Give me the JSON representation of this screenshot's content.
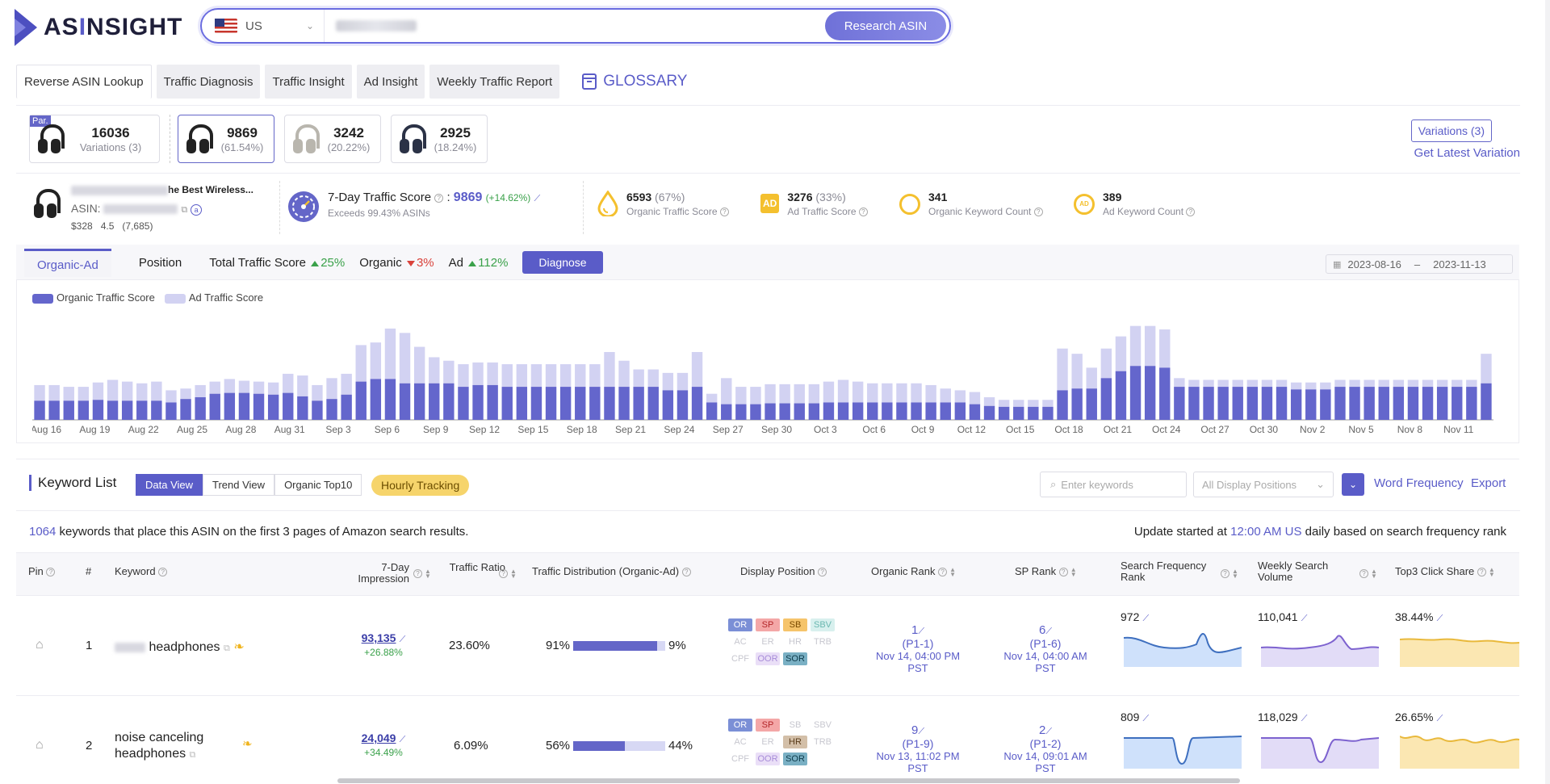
{
  "app": {
    "logo": "ASINSIGHT",
    "accent": "#5a5cc8"
  },
  "search": {
    "country": "US",
    "button": "Research ASIN"
  },
  "tabs": [
    "Reverse ASIN Lookup",
    "Traffic Diagnosis",
    "Traffic Insight",
    "Ad Insight",
    "Weekly Traffic Report"
  ],
  "glossary": "GLOSSARY",
  "variations": {
    "parent_tag": "Par.",
    "cards": [
      {
        "value": "16036",
        "sub": "Variations (3)",
        "color": "#222"
      },
      {
        "value": "9869",
        "sub": "(61.54%)",
        "color": "#222"
      },
      {
        "value": "3242",
        "sub": "(20.22%)",
        "color": "#b9b6ae"
      },
      {
        "value": "2925",
        "sub": "(18.24%)",
        "color": "#2b3246"
      }
    ],
    "button": "Variations (3)",
    "latest_link": "Get Latest Variation"
  },
  "product": {
    "title_tail": "he Best Wireless...",
    "asin_label": "ASIN:",
    "price": "$328",
    "rating": "4.5",
    "reviews": "(7,685)"
  },
  "metrics": {
    "seven_day_label": "7-Day Traffic Score",
    "seven_day_value": "9869",
    "seven_day_change": "(+14.62%)",
    "exceeds": "Exceeds 99.43% ASINs",
    "organic_value": "6593",
    "organic_pct": "(67%)",
    "organic_label": "Organic Traffic Score",
    "ad_value": "3276",
    "ad_pct": "(33%)",
    "ad_label": "Ad Traffic Score",
    "ad_badge": "AD",
    "org_kw_value": "341",
    "org_kw_label": "Organic Keyword Count",
    "ad_kw_value": "389",
    "ad_kw_label": "Ad Keyword Count"
  },
  "chart_tabs": {
    "organic_ad": "Organic-Ad",
    "position": "Position",
    "total_label": "Total Traffic Score",
    "total_change": "25%",
    "organic_label": "Organic",
    "organic_change": "3%",
    "ad_label": "Ad",
    "ad_change": "112%",
    "diagnose": "Diagnose",
    "date_from": "2023-08-16",
    "date_sep": "–",
    "date_to": "2023-11-13"
  },
  "chart_data": {
    "type": "bar",
    "stacked": true,
    "legend": [
      "Organic Traffic Score",
      "Ad Traffic Score"
    ],
    "colors": {
      "organic": "#6466cc",
      "ad": "#d2d2f2"
    },
    "x_labels": [
      "Aug 16",
      "Aug 19",
      "Aug 22",
      "Aug 25",
      "Aug 28",
      "Aug 31",
      "Sep 3",
      "Sep 6",
      "Sep 9",
      "Sep 12",
      "Sep 15",
      "Sep 18",
      "Sep 21",
      "Sep 24",
      "Sep 27",
      "Sep 30",
      "Oct 3",
      "Oct 6",
      "Oct 9",
      "Oct 12",
      "Oct 15",
      "Oct 18",
      "Oct 21",
      "Oct 24",
      "Oct 27",
      "Oct 30",
      "Nov 2",
      "Nov 5",
      "Nov 8",
      "Nov 11"
    ],
    "organic": [
      22,
      22,
      22,
      22,
      23,
      22,
      22,
      22,
      22,
      20,
      24,
      26,
      30,
      31,
      31,
      30,
      29,
      31,
      27,
      22,
      24,
      29,
      44,
      47,
      47,
      42,
      42,
      42,
      42,
      38,
      40,
      40,
      38,
      38,
      38,
      38,
      38,
      38,
      38,
      38,
      38,
      38,
      38,
      34,
      34,
      38,
      20,
      18,
      18,
      18,
      19,
      19,
      19,
      19,
      20,
      20,
      20,
      20,
      20,
      20,
      20,
      20,
      20,
      20,
      18,
      16,
      15,
      15,
      15,
      15,
      34,
      36,
      36,
      48,
      56,
      62,
      62,
      60,
      38,
      38,
      38,
      38,
      38,
      38,
      38,
      38,
      35,
      35,
      35,
      38,
      38,
      38,
      38,
      38,
      38,
      38,
      38,
      38,
      38,
      42
    ],
    "ad": [
      18,
      18,
      16,
      16,
      20,
      24,
      22,
      20,
      22,
      14,
      12,
      14,
      14,
      16,
      14,
      14,
      14,
      22,
      24,
      18,
      24,
      24,
      42,
      42,
      58,
      58,
      42,
      30,
      26,
      26,
      26,
      26,
      26,
      26,
      26,
      26,
      26,
      26,
      26,
      40,
      30,
      20,
      20,
      20,
      20,
      40,
      10,
      30,
      20,
      20,
      22,
      22,
      22,
      22,
      24,
      26,
      24,
      22,
      22,
      22,
      22,
      20,
      16,
      14,
      14,
      10,
      8,
      8,
      8,
      8,
      48,
      40,
      24,
      34,
      40,
      46,
      46,
      44,
      10,
      8,
      8,
      8,
      8,
      8,
      8,
      8,
      8,
      8,
      8,
      8,
      8,
      8,
      8,
      8,
      8,
      8,
      8,
      8,
      8,
      34
    ],
    "ylim": [
      0,
      130
    ]
  },
  "keyword": {
    "title": "Keyword List",
    "views": [
      "Data View",
      "Trend View",
      "Organic Top10"
    ],
    "hourly": "Hourly Tracking",
    "search_placeholder": "Enter keywords",
    "display_select": "All Display Positions",
    "word_freq": "Word Frequency",
    "export": "Export",
    "count": "1064",
    "summary": " keywords that place this ASIN on the first 3 pages of Amazon search results.",
    "update_pre": "Update started at ",
    "update_time": "12:00 AM US",
    "update_post": " daily based on search frequency rank"
  },
  "table": {
    "headers": {
      "pin": "Pin",
      "num": "#",
      "keyword": "Keyword",
      "impression": "7-Day Impression",
      "ratio": "Traffic Ratio",
      "dist": "Traffic Distribution (Organic-Ad)",
      "display": "Display Position",
      "organic_rank": "Organic Rank",
      "sp_rank": "SP Rank",
      "sfr": "Search Frequency Rank",
      "wsv": "Weekly Search Volume",
      "top3": "Top3 Click Share"
    },
    "positions": [
      "OR",
      "SP",
      "SB",
      "SBV",
      "AC",
      "ER",
      "HR",
      "TRB",
      "CPF",
      "OOR",
      "SOR"
    ],
    "rows": [
      {
        "num": "1",
        "keyword": "headphones",
        "impression": "93,135",
        "imp_change": "+26.88%",
        "ratio": "23.60%",
        "organic_pct": "91%",
        "ad_pct": "9%",
        "organic_frac": 0.91,
        "active_positions": [
          "OR",
          "SP",
          "SB",
          "SBV",
          "OOR",
          "SOR"
        ],
        "org_rank": "1",
        "org_page": "(P1-1)",
        "org_time": "Nov 14, 04:00 PM PST",
        "sp_rank": "6",
        "sp_page": "(P1-6)",
        "sp_time": "Nov 14, 04:00 AM PST",
        "sfr": "972",
        "wsv": "110,041",
        "top3": "38.44%"
      },
      {
        "num": "2",
        "keyword": "noise canceling headphones",
        "impression": "24,049",
        "imp_change": "+34.49%",
        "ratio": "6.09%",
        "organic_pct": "56%",
        "ad_pct": "44%",
        "organic_frac": 0.56,
        "active_positions": [
          "OR",
          "SP",
          "HR",
          "OOR",
          "SOR"
        ],
        "org_rank": "9",
        "org_page": "(P1-9)",
        "org_time": "Nov 13, 11:02 PM PST",
        "sp_rank": "2",
        "sp_page": "(P1-2)",
        "sp_time": "Nov 14, 09:01 AM PST",
        "sfr": "809",
        "wsv": "118,029",
        "top3": "26.65%"
      }
    ]
  }
}
